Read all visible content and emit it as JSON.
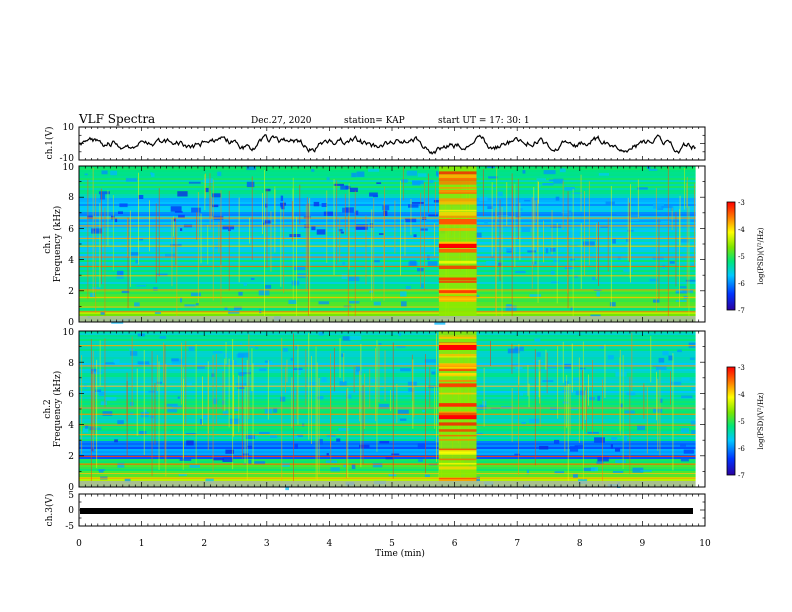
{
  "header": {
    "title": "VLF Spectra",
    "date": "Dec.27, 2020",
    "station": "station= KAP",
    "start": "start  UT  =    17: 30: 1"
  },
  "chart_data": [
    {
      "type": "line",
      "panel": "ch1-waveform",
      "ylabel": "ch.1(V)",
      "ylim": [
        -10,
        10
      ],
      "ytick_labels": [
        "10",
        "-10"
      ],
      "xlim": [
        0,
        10
      ]
    },
    {
      "type": "heatmap",
      "panel": "ch1-spectrogram",
      "ylabel_line1": "ch.1",
      "ylabel_line2": "Frequency (kHz)",
      "ylim": [
        0,
        10
      ],
      "ytick_labels": [
        "0",
        "2",
        "4",
        "6",
        "8",
        "10"
      ],
      "xlim": [
        0,
        10
      ],
      "colorbar": {
        "label": "log(PSD)(V²/Hz)",
        "range": [
          -7,
          -3
        ],
        "tick_labels": [
          "-3",
          "-4",
          "-5",
          "-6",
          "-7"
        ]
      }
    },
    {
      "type": "heatmap",
      "panel": "ch2-spectrogram",
      "ylabel_line1": "ch.2",
      "ylabel_line2": "Frequency (kHz)",
      "ylim": [
        0,
        10
      ],
      "ytick_labels": [
        "0",
        "2",
        "4",
        "6",
        "8",
        "10"
      ],
      "xlim": [
        0,
        10
      ],
      "colorbar": {
        "label": "log(PSD)(V²/Hz)",
        "range": [
          -7,
          -3
        ],
        "tick_labels": [
          "-3",
          "-4",
          "-5",
          "-6",
          "-7"
        ]
      }
    },
    {
      "type": "line",
      "panel": "ch3-waveform",
      "ylabel": "ch.3(V)",
      "ylim": [
        -5,
        5
      ],
      "ytick_labels": [
        "5",
        "0",
        "-5"
      ],
      "xlim": [
        0,
        10
      ],
      "xlabel": "Time  (min)",
      "xtick_labels": [
        "0",
        "1",
        "2",
        "3",
        "4",
        "5",
        "6",
        "7",
        "8",
        "9",
        "10"
      ]
    }
  ]
}
